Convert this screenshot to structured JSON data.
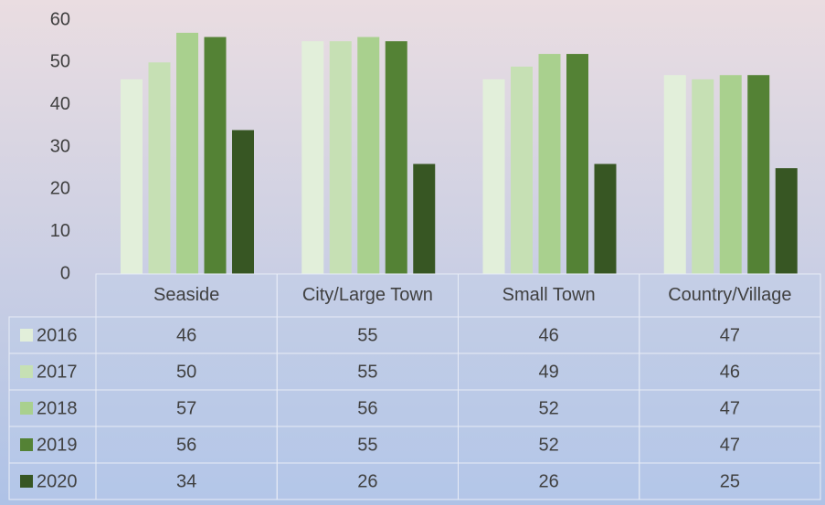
{
  "chart_data": {
    "type": "bar",
    "categories": [
      "Seaside",
      "City/Large Town",
      "Small Town",
      "Country/Village"
    ],
    "series": [
      {
        "name": "2016",
        "color": "#e2efda",
        "values": [
          46,
          55,
          46,
          47
        ]
      },
      {
        "name": "2017",
        "color": "#c6e0b4",
        "values": [
          50,
          55,
          49,
          46
        ]
      },
      {
        "name": "2018",
        "color": "#a9d08e",
        "values": [
          57,
          56,
          52,
          47
        ]
      },
      {
        "name": "2019",
        "color": "#548235",
        "values": [
          56,
          55,
          52,
          47
        ]
      },
      {
        "name": "2020",
        "color": "#375623",
        "values": [
          34,
          26,
          26,
          25
        ]
      }
    ],
    "ylim": [
      0,
      60
    ],
    "yticks": [
      0,
      10,
      20,
      30,
      40,
      50,
      60
    ],
    "grid": false
  }
}
